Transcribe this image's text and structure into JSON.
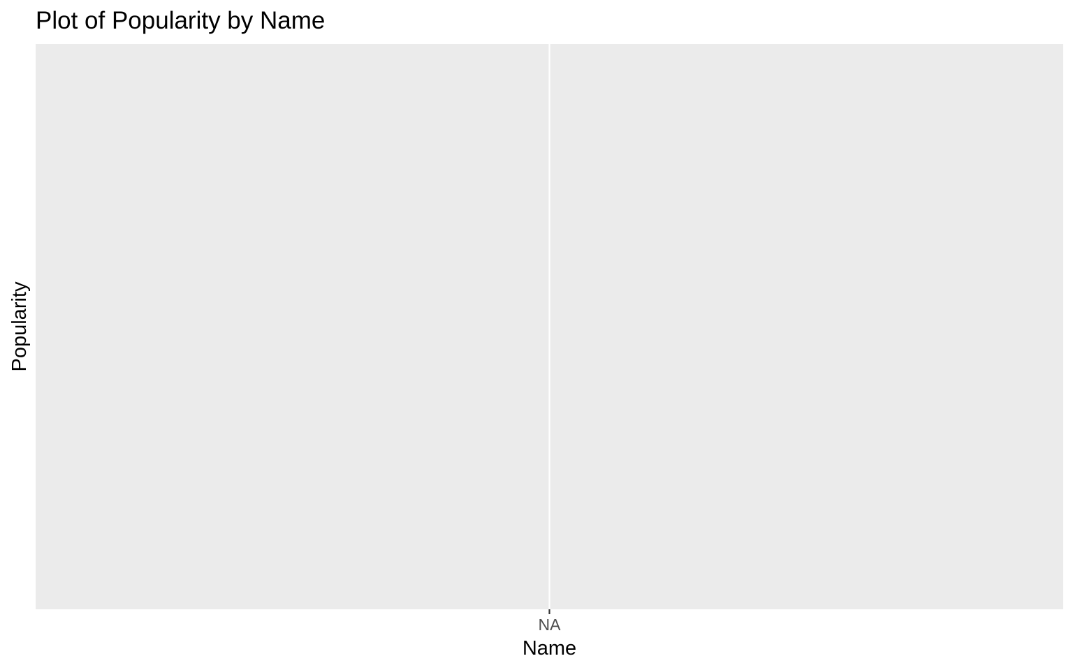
{
  "chart_data": {
    "type": "bar",
    "title": "Plot of Popularity by Name",
    "xlabel": "Name",
    "ylabel": "Popularity",
    "categories": [
      "NA"
    ],
    "values": [
      null
    ],
    "grid": true,
    "legend": "none",
    "colors": {
      "panel_background": "#ebebeb",
      "gridline": "#ffffff",
      "tick_mark": "#333333",
      "tick_label": "#4d4d4d",
      "text": "#000000"
    }
  }
}
